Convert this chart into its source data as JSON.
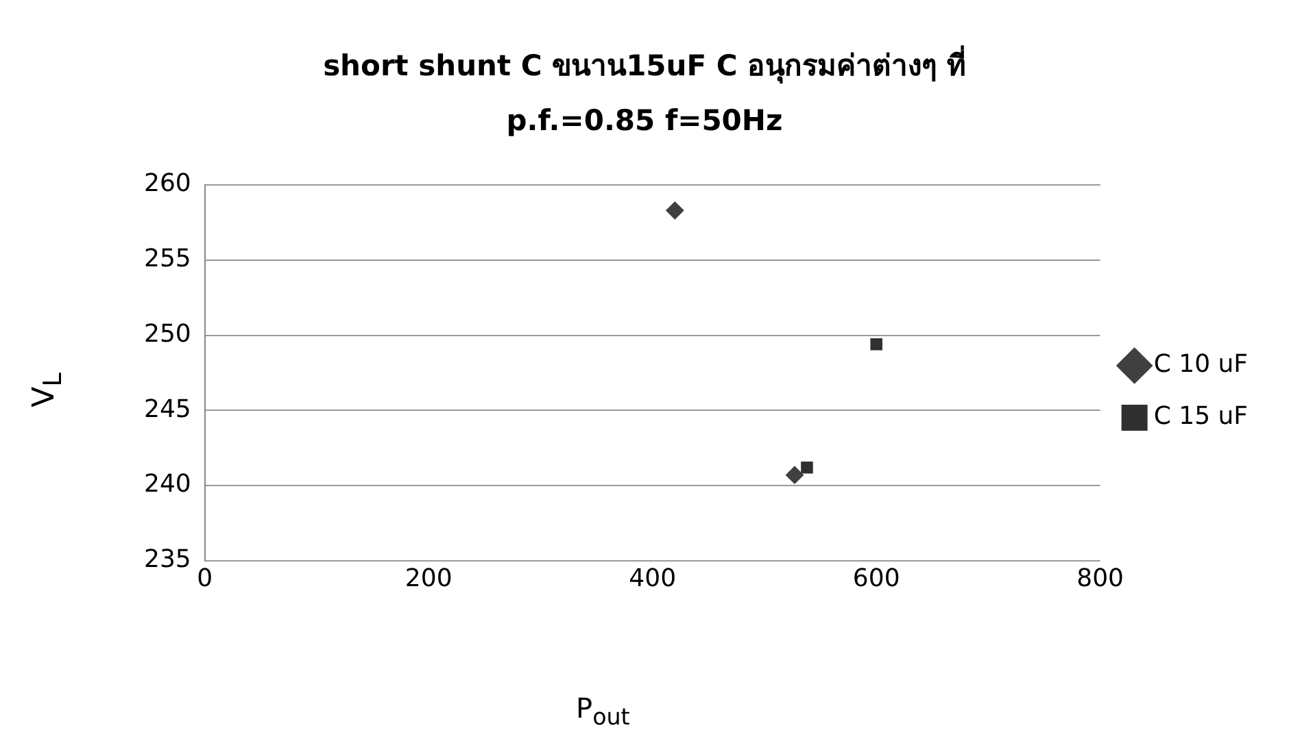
{
  "chart_data": {
    "type": "scatter",
    "title": "short shunt C ขนาน15uF C อนุกรมค่าต่างๆ ที่ p.f.=0.85 f=50Hz",
    "xlabel": "P$_{out}$",
    "ylabel": "V$_{L}$",
    "xlim": [
      0,
      800
    ],
    "xticks": [
      0,
      200,
      400,
      600,
      800
    ],
    "ylim": [
      235,
      260
    ],
    "yticks": [
      235,
      240,
      245,
      250,
      255,
      260
    ],
    "grid": "y",
    "legend": "right",
    "series": [
      {
        "name": "C 10 uF",
        "color": "#404040",
        "marker": "diamond",
        "x": [
          420,
          527
        ],
        "values": [
          258.3,
          240.7
        ]
      },
      {
        "name": "C 15 uF",
        "color": "#303030",
        "marker": "square",
        "x": [
          538,
          600
        ],
        "values": [
          241.2,
          249.4
        ]
      }
    ]
  }
}
